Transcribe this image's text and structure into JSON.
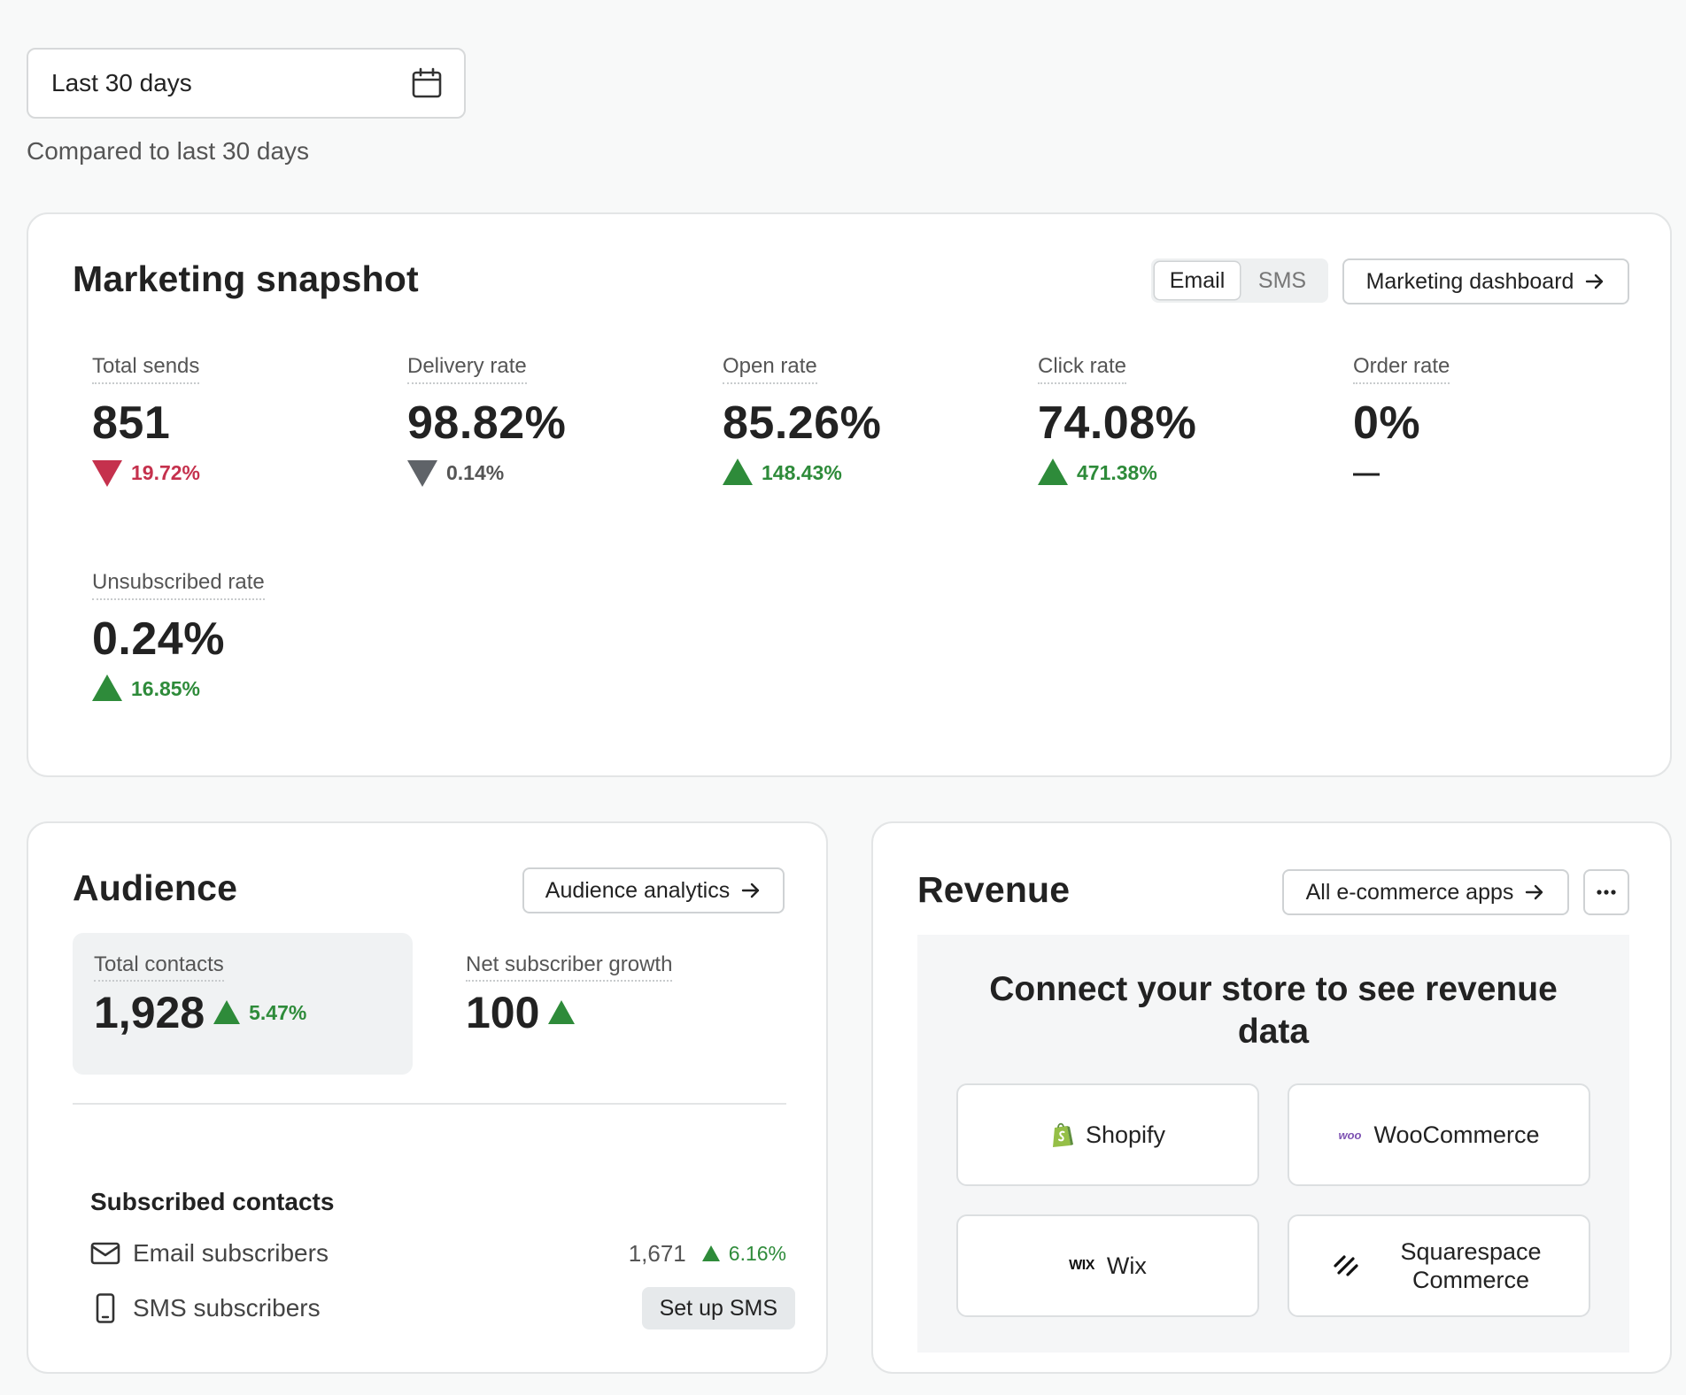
{
  "date_filter": {
    "value": "Last 30 days",
    "comparison": "Compared to last 30 days"
  },
  "snapshot": {
    "title": "Marketing snapshot",
    "channel_tabs": [
      {
        "label": "Email",
        "active": true
      },
      {
        "label": "SMS",
        "active": false
      }
    ],
    "dashboard_button": "Marketing dashboard",
    "metrics": [
      {
        "label": "Total sends",
        "value": "851",
        "change": "19.72%",
        "direction": "down",
        "tone": "negative"
      },
      {
        "label": "Delivery rate",
        "value": "98.82%",
        "change": "0.14%",
        "direction": "down",
        "tone": "neutral"
      },
      {
        "label": "Open rate",
        "value": "85.26%",
        "change": "148.43%",
        "direction": "up",
        "tone": "positive"
      },
      {
        "label": "Click rate",
        "value": "74.08%",
        "change": "471.38%",
        "direction": "up",
        "tone": "positive"
      },
      {
        "label": "Order rate",
        "value": "0%",
        "change": "—",
        "direction": "none",
        "tone": "none"
      },
      {
        "label": "Unsubscribed rate",
        "value": "0.24%",
        "change": "16.85%",
        "direction": "up",
        "tone": "positive"
      }
    ]
  },
  "audience": {
    "title": "Audience",
    "analytics_button": "Audience analytics",
    "total_contacts": {
      "label": "Total contacts",
      "value": "1,928",
      "change": "5.47%"
    },
    "net_growth": {
      "label": "Net subscriber growth",
      "value": "100"
    },
    "subscribed_title": "Subscribed contacts",
    "email_subscribers": {
      "label": "Email subscribers",
      "count": "1,671",
      "change": "6.16%"
    },
    "sms_subscribers": {
      "label": "SMS subscribers",
      "action": "Set up SMS"
    }
  },
  "revenue": {
    "title": "Revenue",
    "apps_button": "All e-commerce apps",
    "heading": "Connect your store to see revenue data",
    "stores": [
      {
        "name": "Shopify",
        "logo": "shopify-logo"
      },
      {
        "name": "WooCommerce",
        "logo": "woo-logo",
        "logo_text": "woo"
      },
      {
        "name": "Wix",
        "logo": "wix-logo",
        "logo_text": "WIX"
      },
      {
        "name": "Squarespace Commerce",
        "logo": "squarespace-logo"
      }
    ]
  },
  "colors": {
    "positive": "#2e8b3a",
    "negative": "#c5314d",
    "neutral": "#555555",
    "woo_purple": "#7f54b3",
    "shopify_green": "#95bf47"
  }
}
